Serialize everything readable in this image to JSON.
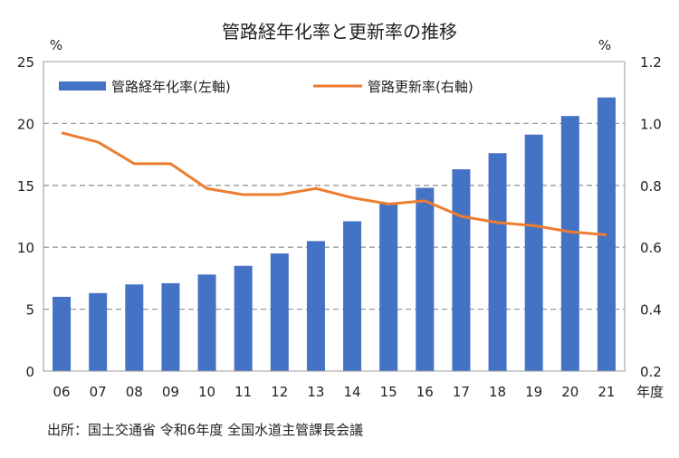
{
  "chart_data": {
    "type": "bar+line",
    "title": "管路経年化率と更新率の推移",
    "left_unit": "%",
    "right_unit": "%",
    "xlabel": "年度",
    "categories": [
      "06",
      "07",
      "08",
      "09",
      "10",
      "11",
      "12",
      "13",
      "14",
      "15",
      "16",
      "17",
      "18",
      "19",
      "20",
      "21"
    ],
    "left_axis": {
      "ylim": [
        0,
        25
      ],
      "ticks": [
        0,
        5,
        10,
        15,
        20,
        25
      ],
      "tick_labels": [
        "0",
        "5",
        "10",
        "15",
        "20",
        "25"
      ]
    },
    "right_axis": {
      "ylim": [
        0.2,
        1.2
      ],
      "ticks": [
        0.2,
        0.4,
        0.6,
        0.8,
        1.0,
        1.2
      ],
      "tick_labels": [
        "0.2",
        "0.4",
        "0.6",
        "0.8",
        "1.0",
        "1.2"
      ]
    },
    "grid": "dashed horizontal",
    "legend_placement": "top",
    "series": [
      {
        "name": "管路経年化率(左軸)",
        "type": "bar",
        "axis": "left",
        "color": "#4472C4",
        "values": [
          6.0,
          6.3,
          7.0,
          7.1,
          7.8,
          8.5,
          9.5,
          10.5,
          12.1,
          13.6,
          14.8,
          16.3,
          17.6,
          19.1,
          20.6,
          22.1
        ]
      },
      {
        "name": "管路更新率(右軸)",
        "type": "line",
        "axis": "right",
        "color": "#ED7D31",
        "values": [
          0.97,
          0.94,
          0.87,
          0.87,
          0.79,
          0.77,
          0.77,
          0.79,
          0.76,
          0.74,
          0.75,
          0.7,
          0.68,
          0.67,
          0.65,
          0.64
        ]
      }
    ],
    "source": "出所：国土交通省 令和6年度 全国水道主管課長会議"
  }
}
